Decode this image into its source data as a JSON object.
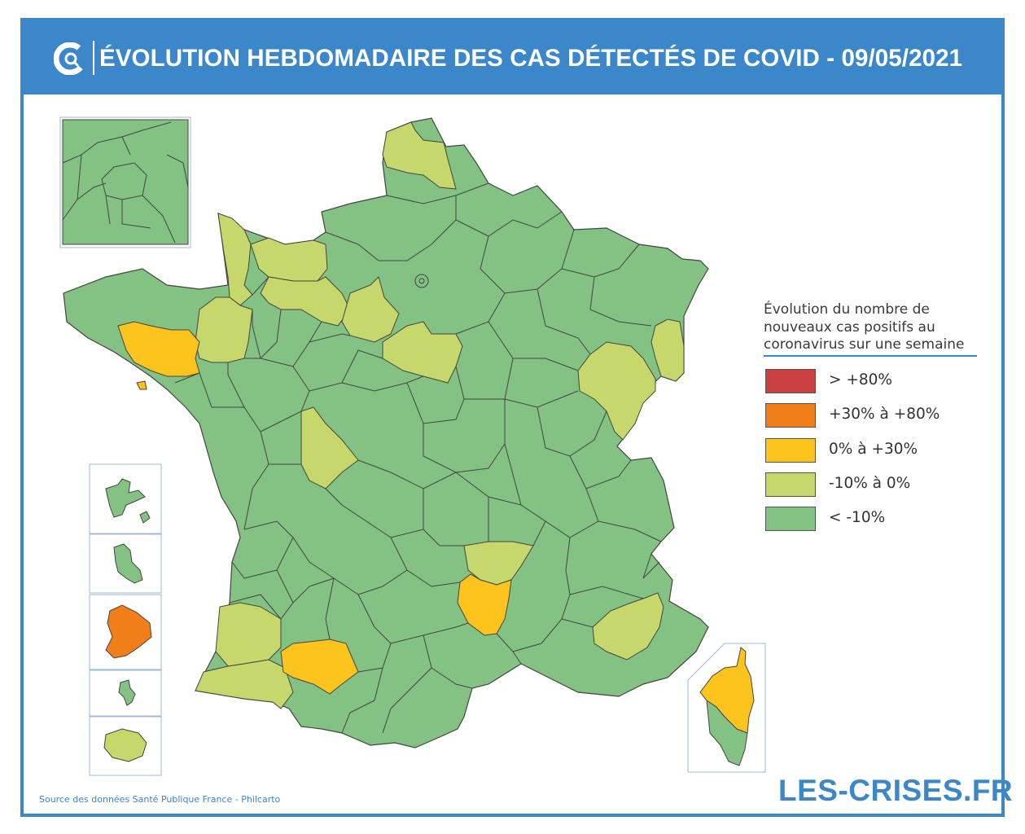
{
  "header": {
    "title": "ÉVOLUTION HEBDOMADAIRE DES CAS DÉTECTÉS DE COVID - 09/05/2021",
    "background_color": "#3b87c9"
  },
  "legend": {
    "title": "Évolution du nombre de nouveaux cas positifs au coronavirus sur une semaine",
    "items": [
      {
        "label": "> +80%",
        "color": "#c94040"
      },
      {
        "label": "+30% à +80%",
        "color": "#f07f1a"
      },
      {
        "label": "0% à +30%",
        "color": "#fdc41d"
      },
      {
        "label": "-10% à 0%",
        "color": "#c6d86c"
      },
      {
        "label": "< -10%",
        "color": "#83c283"
      }
    ]
  },
  "map": {
    "category_colors": {
      "gt80": "#c94040",
      "p30_80": "#f07f1a",
      "p0_30": "#fdc41d",
      "m10_0": "#c6d86c",
      "lt_m10": "#83c283"
    },
    "regions": [
      {
        "name": "metropolitan-france",
        "category": "lt_m10"
      },
      {
        "name": "nord",
        "category": "m10_0"
      },
      {
        "name": "manche",
        "category": "m10_0"
      },
      {
        "name": "calvados",
        "category": "m10_0"
      },
      {
        "name": "orne-eure",
        "category": "m10_0"
      },
      {
        "name": "val-d-oise-region",
        "category": "m10_0"
      },
      {
        "name": "marne-aube",
        "category": "m10_0"
      },
      {
        "name": "morbihan",
        "category": "p0_30"
      },
      {
        "name": "ille-et-vilaine",
        "category": "m10_0"
      },
      {
        "name": "cher",
        "category": "m10_0"
      },
      {
        "name": "doubs-jura",
        "category": "m10_0"
      },
      {
        "name": "haut-rhin",
        "category": "m10_0"
      },
      {
        "name": "loire",
        "category": "m10_0"
      },
      {
        "name": "haute-loire",
        "category": "p0_30"
      },
      {
        "name": "alpes-de-haute-provence",
        "category": "m10_0"
      },
      {
        "name": "landes",
        "category": "m10_0"
      },
      {
        "name": "pyrenees-atlantiques",
        "category": "m10_0"
      },
      {
        "name": "gers",
        "category": "p0_30"
      },
      {
        "name": "paris-inset",
        "category": "lt_m10"
      },
      {
        "name": "corsica-north",
        "category": "p0_30"
      },
      {
        "name": "corsica-south",
        "category": "lt_m10"
      },
      {
        "name": "guadeloupe",
        "category": "lt_m10"
      },
      {
        "name": "martinique",
        "category": "lt_m10"
      },
      {
        "name": "guyane",
        "category": "p30_80"
      },
      {
        "name": "mayotte",
        "category": "lt_m10"
      },
      {
        "name": "la-reunion",
        "category": "m10_0"
      }
    ]
  },
  "footer": {
    "source": "Source des données Santé Publique France - Philcarto",
    "brand": "LES-CRISES.FR"
  }
}
